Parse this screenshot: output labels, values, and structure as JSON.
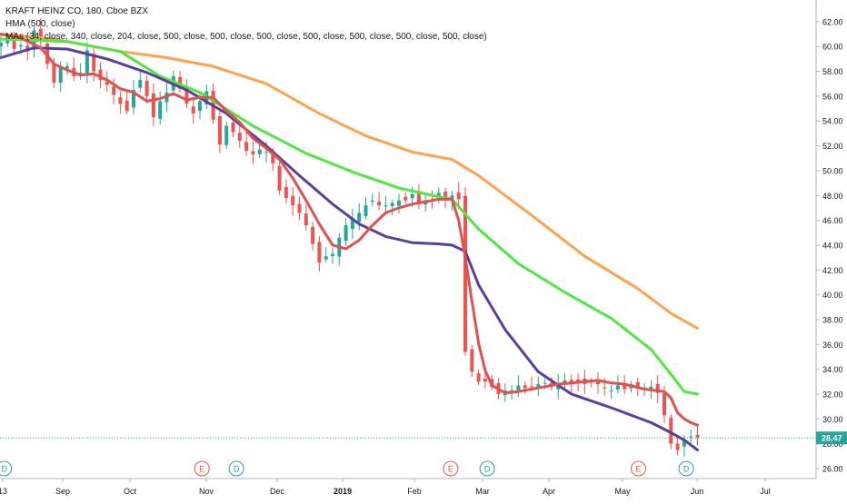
{
  "chart_data": {
    "type": "line",
    "title": "KRAFT HEINZ CO, 180, Cboe BZX",
    "indicators": [
      "HMA (500, close)",
      "MAs (34, close, 340, close, 204, close, 500, close, 500, close, 500, close, 500, close, 500, close, 500, close, 500, close)"
    ],
    "x_ticks": [
      "13",
      "Sep",
      "Oct",
      "Nov",
      "Dec",
      "2019",
      "Feb",
      "Mar",
      "Apr",
      "May",
      "Jun",
      "Jul"
    ],
    "y_ticks": [
      "26.00",
      "28.00",
      "30.00",
      "32.00",
      "34.00",
      "36.00",
      "38.00",
      "40.00",
      "42.00",
      "44.00",
      "46.00",
      "48.00",
      "50.00",
      "52.00",
      "54.00",
      "56.00",
      "58.00",
      "60.00",
      "62.00"
    ],
    "ylim": [
      25.4,
      63.5
    ],
    "grid": false,
    "last_price": "28.47",
    "last_price_value": 28.47,
    "colors": {
      "background": "#ffffff",
      "up": "#26a69a",
      "down": "#ef5350",
      "last_price_line": "#26a69a",
      "axis_text": "#131722",
      "event_dividend": "#26a69a",
      "event_earnings": "#ef5350"
    },
    "events": [
      {
        "x": 0.5,
        "label": "D"
      },
      {
        "x": 30.3,
        "label": "E"
      },
      {
        "x": 35.5,
        "label": "D"
      },
      {
        "x": 67.8,
        "label": "E"
      },
      {
        "x": 73.3,
        "label": "D"
      },
      {
        "x": 96.1,
        "label": "E"
      },
      {
        "x": 103.3,
        "label": "D"
      }
    ],
    "series": [
      {
        "color": "#ffa24c",
        "points": [
          [
            0,
            61.0
          ],
          [
            8,
            60.6
          ],
          [
            18,
            59.6
          ],
          [
            25,
            59.1
          ],
          [
            32,
            58.4
          ],
          [
            40,
            57.0
          ],
          [
            48,
            54.6
          ],
          [
            55,
            52.8
          ],
          [
            62,
            51.5
          ],
          [
            68,
            50.9
          ],
          [
            72,
            49.6
          ],
          [
            80,
            46.4
          ],
          [
            88,
            43.1
          ],
          [
            96,
            40.5
          ],
          [
            101,
            38.5
          ],
          [
            105,
            37.3
          ]
        ]
      },
      {
        "color": "#4ee840",
        "points": [
          [
            0,
            60.6
          ],
          [
            10,
            60.4
          ],
          [
            18,
            59.6
          ],
          [
            24,
            57.6
          ],
          [
            30,
            56.3
          ],
          [
            38,
            53.6
          ],
          [
            46,
            51.4
          ],
          [
            53,
            49.9
          ],
          [
            60,
            48.6
          ],
          [
            66,
            47.9
          ],
          [
            68,
            47.7
          ],
          [
            72,
            45.3
          ],
          [
            78,
            42.5
          ],
          [
            85,
            40.2
          ],
          [
            92,
            38.1
          ],
          [
            98,
            35.6
          ],
          [
            101,
            33.6
          ],
          [
            103,
            32.2
          ],
          [
            105,
            32.0
          ]
        ]
      },
      {
        "color": "#5a3f9e",
        "points": [
          [
            0,
            59.1
          ],
          [
            5,
            59.9
          ],
          [
            10,
            59.8
          ],
          [
            16,
            59.0
          ],
          [
            22,
            57.9
          ],
          [
            28,
            56.5
          ],
          [
            34,
            54.6
          ],
          [
            40,
            52.0
          ],
          [
            45,
            49.6
          ],
          [
            50,
            47.3
          ],
          [
            54,
            45.7
          ],
          [
            58,
            44.7
          ],
          [
            62,
            44.2
          ],
          [
            66,
            44.1
          ],
          [
            68,
            44.0
          ],
          [
            70,
            43.5
          ],
          [
            72,
            40.8
          ],
          [
            76,
            37.2
          ],
          [
            81,
            33.8
          ],
          [
            86,
            32.0
          ],
          [
            92,
            30.9
          ],
          [
            98,
            29.7
          ],
          [
            101,
            28.9
          ],
          [
            103,
            28.3
          ],
          [
            105,
            27.5
          ]
        ]
      },
      {
        "color": "#e25050",
        "points": [
          [
            0,
            61.0
          ],
          [
            3,
            60.7
          ],
          [
            6,
            59.9
          ],
          [
            8,
            58.6
          ],
          [
            10,
            58.1
          ],
          [
            12,
            57.7
          ],
          [
            14,
            57.8
          ],
          [
            16,
            57.3
          ],
          [
            18,
            56.6
          ],
          [
            20,
            56.3
          ],
          [
            22,
            55.6
          ],
          [
            24,
            55.8
          ],
          [
            26,
            56.2
          ],
          [
            28,
            55.7
          ],
          [
            30,
            55.9
          ],
          [
            32,
            55.9
          ],
          [
            34,
            54.8
          ],
          [
            36,
            53.9
          ],
          [
            38,
            52.6
          ],
          [
            40,
            51.8
          ],
          [
            42,
            50.9
          ],
          [
            44,
            49.4
          ],
          [
            46,
            47.6
          ],
          [
            48,
            45.7
          ],
          [
            50,
            44.0
          ],
          [
            52,
            43.7
          ],
          [
            54,
            44.4
          ],
          [
            56,
            45.6
          ],
          [
            58,
            46.6
          ],
          [
            60,
            47.0
          ],
          [
            62,
            47.3
          ],
          [
            64,
            47.5
          ],
          [
            66,
            47.7
          ],
          [
            68,
            47.7
          ],
          [
            69,
            46.0
          ],
          [
            70,
            43.0
          ],
          [
            71,
            39.5
          ],
          [
            72,
            36.1
          ],
          [
            73,
            33.9
          ],
          [
            74,
            32.7
          ],
          [
            76,
            32.1
          ],
          [
            78,
            32.2
          ],
          [
            80,
            32.4
          ],
          [
            82,
            32.6
          ],
          [
            84,
            32.8
          ],
          [
            86,
            32.9
          ],
          [
            88,
            33.0
          ],
          [
            90,
            33.1
          ],
          [
            92,
            32.9
          ],
          [
            94,
            32.8
          ],
          [
            97,
            32.4
          ],
          [
            100,
            32.2
          ],
          [
            101,
            31.7
          ],
          [
            102,
            30.5
          ],
          [
            103,
            30.0
          ],
          [
            104,
            29.7
          ],
          [
            105,
            29.5
          ]
        ]
      }
    ],
    "candle_path": [
      [
        0,
        60.3
      ],
      [
        1,
        60.6
      ],
      [
        2,
        59.8
      ],
      [
        3,
        60.1
      ],
      [
        4,
        59.6
      ],
      [
        5,
        61.3
      ],
      [
        6,
        60.4
      ],
      [
        7,
        58.6
      ],
      [
        8,
        57.1
      ],
      [
        9,
        58.3
      ],
      [
        10,
        58.4
      ],
      [
        11,
        57.6
      ],
      [
        12,
        57.9
      ],
      [
        13,
        59.7
      ],
      [
        14,
        58.0
      ],
      [
        15,
        57.3
      ],
      [
        16,
        56.9
      ],
      [
        17,
        56.1
      ],
      [
        18,
        55.4
      ],
      [
        19,
        54.8
      ],
      [
        20,
        56.5
      ],
      [
        21,
        57.3
      ],
      [
        22,
        56.0
      ],
      [
        23,
        54.3
      ],
      [
        24,
        55.6
      ],
      [
        25,
        56.3
      ],
      [
        26,
        57.6
      ],
      [
        27,
        56.6
      ],
      [
        28,
        55.4
      ],
      [
        29,
        54.6
      ],
      [
        30,
        55.6
      ],
      [
        31,
        56.4
      ],
      [
        32,
        54.1
      ],
      [
        33,
        52.1
      ],
      [
        34,
        53.6
      ],
      [
        35,
        53.1
      ],
      [
        36,
        52.4
      ],
      [
        37,
        51.6
      ],
      [
        38,
        51.3
      ],
      [
        39,
        51.7
      ],
      [
        40,
        51.5
      ],
      [
        41,
        50.6
      ],
      [
        42,
        48.4
      ],
      [
        43,
        47.8
      ],
      [
        44,
        47.2
      ],
      [
        45,
        46.6
      ],
      [
        46,
        45.6
      ],
      [
        47,
        44.1
      ],
      [
        48,
        42.6
      ],
      [
        49,
        43.1
      ],
      [
        50,
        43.3
      ],
      [
        51,
        44.6
      ],
      [
        52,
        45.6
      ],
      [
        53,
        46.1
      ],
      [
        54,
        46.6
      ],
      [
        55,
        47.2
      ],
      [
        56,
        47.6
      ],
      [
        57,
        47.2
      ],
      [
        58,
        47.2
      ],
      [
        59,
        47.4
      ],
      [
        60,
        47.6
      ],
      [
        61,
        47.6
      ],
      [
        62,
        48.1
      ],
      [
        63,
        47.3
      ],
      [
        64,
        47.6
      ],
      [
        65,
        47.6
      ],
      [
        66,
        48.2
      ],
      [
        67,
        47.6
      ],
      [
        68,
        48.0
      ],
      [
        69,
        47.7
      ],
      [
        70,
        35.4
      ],
      [
        71,
        33.8
      ],
      [
        72,
        33.0
      ],
      [
        73,
        33.0
      ],
      [
        74,
        32.6
      ],
      [
        75,
        32.0
      ],
      [
        76,
        32.3
      ],
      [
        77,
        32.3
      ],
      [
        78,
        32.7
      ],
      [
        79,
        32.5
      ],
      [
        80,
        32.6
      ],
      [
        81,
        32.8
      ],
      [
        82,
        32.9
      ],
      [
        83,
        32.6
      ],
      [
        84,
        32.8
      ],
      [
        85,
        33.1
      ],
      [
        86,
        32.9
      ],
      [
        87,
        33.0
      ],
      [
        88,
        32.8
      ],
      [
        89,
        32.9
      ],
      [
        90,
        32.8
      ],
      [
        91,
        32.5
      ],
      [
        92,
        32.3
      ],
      [
        93,
        32.7
      ],
      [
        94,
        32.4
      ],
      [
        95,
        32.8
      ],
      [
        96,
        32.6
      ],
      [
        97,
        32.5
      ],
      [
        98,
        32.6
      ],
      [
        99,
        32.1
      ],
      [
        100,
        30.3
      ],
      [
        101,
        28.0
      ],
      [
        102,
        27.5
      ],
      [
        103,
        28.3
      ],
      [
        104,
        28.6
      ],
      [
        105,
        28.5
      ]
    ]
  }
}
